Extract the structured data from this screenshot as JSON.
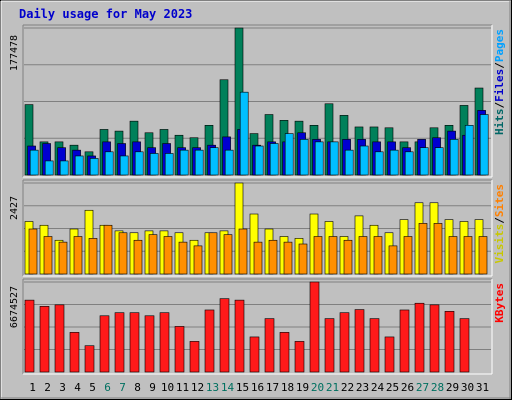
{
  "chart_data": [
    {
      "type": "bar",
      "title": "Daily usage for May 2023",
      "categories": [
        "1",
        "2",
        "3",
        "4",
        "5",
        "6",
        "7",
        "8",
        "9",
        "10",
        "11",
        "12",
        "13",
        "14",
        "15",
        "16",
        "17",
        "18",
        "19",
        "20",
        "21",
        "22",
        "23",
        "24",
        "25",
        "26",
        "27",
        "28",
        "29",
        "30",
        "31"
      ],
      "weekend_days": [
        "6",
        "7",
        "13",
        "14",
        "20",
        "21",
        "27",
        "28"
      ],
      "ymax_label": "177478",
      "ylim": [
        0,
        177478
      ],
      "grid": true,
      "legend": [
        {
          "text": "Hits",
          "color": "#006666"
        },
        {
          "text": "/",
          "color": "#000000"
        },
        {
          "text": "Files",
          "color": "#0000cc"
        },
        {
          "text": "/",
          "color": "#000000"
        },
        {
          "text": "Pages",
          "color": "#00a0ff"
        }
      ],
      "series": [
        {
          "name": "Hits",
          "color": "#00805a",
          "values": [
            85000,
            40000,
            40000,
            36000,
            28000,
            55000,
            53000,
            65000,
            51000,
            55000,
            48000,
            45000,
            60000,
            115000,
            177478,
            50000,
            73000,
            66000,
            65000,
            60000,
            86000,
            72000,
            58000,
            58000,
            57000,
            40000,
            40000,
            57000,
            60000,
            84000,
            105000
          ]
        },
        {
          "name": "Files",
          "color": "#0000d0",
          "values": [
            35000,
            38000,
            33000,
            30000,
            23000,
            40000,
            38000,
            40000,
            33000,
            38000,
            33000,
            33000,
            36000,
            46000,
            55000,
            36000,
            40000,
            40000,
            51000,
            43000,
            40000,
            43000,
            43000,
            40000,
            40000,
            33000,
            43000,
            45000,
            53000,
            48000,
            78000
          ]
        },
        {
          "name": "Pages",
          "color": "#00bfff",
          "values": [
            30000,
            17000,
            17000,
            23000,
            20000,
            28000,
            23000,
            28000,
            26000,
            26000,
            30000,
            30000,
            33000,
            30000,
            100000,
            35000,
            38000,
            50000,
            43000,
            40000,
            40000,
            30000,
            35000,
            28000,
            30000,
            28000,
            33000,
            33000,
            43000,
            60000,
            73000
          ]
        }
      ]
    },
    {
      "type": "bar",
      "ymax_label": "2427",
      "ylim": [
        0,
        2427
      ],
      "grid": true,
      "legend": [
        {
          "text": "Visits",
          "color": "#c8c800"
        },
        {
          "text": "/",
          "color": "#000000"
        },
        {
          "text": "Sites",
          "color": "#ff8000"
        }
      ],
      "series": [
        {
          "name": "Visits",
          "color": "#ffff00",
          "values": [
            1400,
            1300,
            900,
            1200,
            1700,
            1300,
            1150,
            1100,
            1150,
            1150,
            1100,
            900,
            1100,
            1150,
            2427,
            1600,
            1200,
            1000,
            950,
            1600,
            1400,
            1000,
            1550,
            1300,
            1100,
            1450,
            1900,
            1900,
            1450,
            1400,
            1450
          ]
        },
        {
          "name": "Sites",
          "color": "#ff9000",
          "values": [
            1200,
            1000,
            850,
            1000,
            950,
            1300,
            1100,
            900,
            1050,
            1000,
            850,
            750,
            1100,
            1050,
            1200,
            850,
            900,
            850,
            800,
            1000,
            1000,
            900,
            1000,
            1000,
            750,
            1000,
            1350,
            1350,
            1000,
            1000,
            1000
          ]
        }
      ]
    },
    {
      "type": "bar",
      "ymax_label": "6674527",
      "ylim": [
        0,
        6674527
      ],
      "grid": true,
      "legend": [
        {
          "text": "KBytes",
          "color": "#ff0000"
        }
      ],
      "series": [
        {
          "name": "KBytes",
          "color": "#ff1a1a",
          "values": [
            5330000,
            4870000,
            4980000,
            2940000,
            1950000,
            4170000,
            4400000,
            4400000,
            4170000,
            4400000,
            3380000,
            2270000,
            4600000,
            5440000,
            5330000,
            2600000,
            3960000,
            2940000,
            2270000,
            6674527,
            3960000,
            4400000,
            4630000,
            3960000,
            2600000,
            4600000,
            5100000,
            4980000,
            4500000,
            3960000,
            null
          ]
        }
      ]
    }
  ],
  "x_labels_colors": {
    "weekday": "#000000",
    "weekend": "#007060"
  }
}
